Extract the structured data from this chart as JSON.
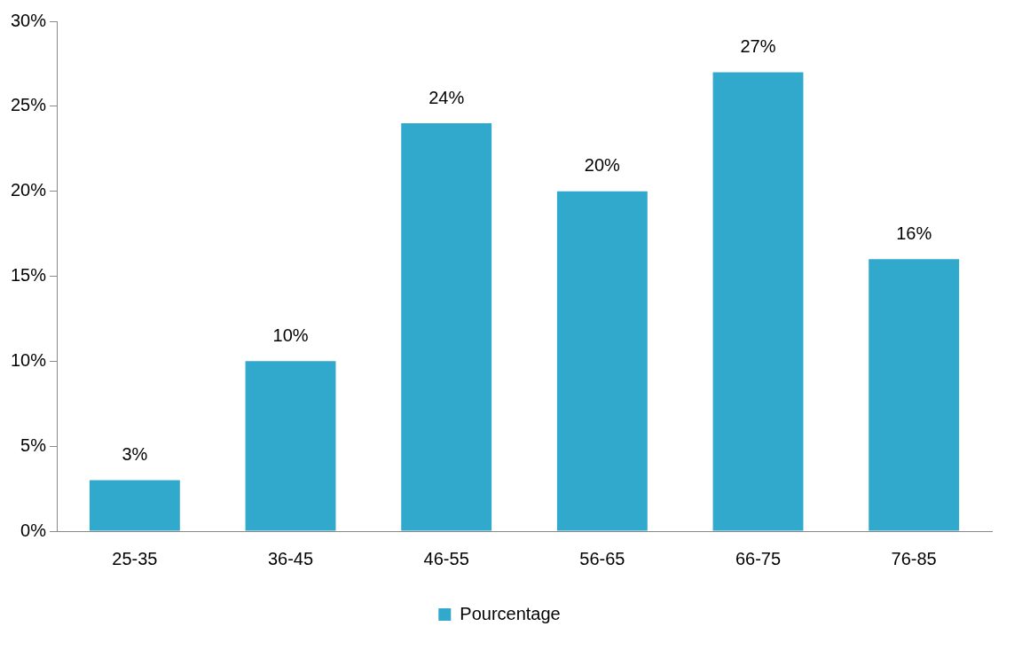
{
  "chart_data": {
    "type": "bar",
    "categories": [
      "25-35",
      "36-45",
      "46-55",
      "56-65",
      "66-75",
      "76-85"
    ],
    "series": [
      {
        "name": "Pourcentage",
        "color": "#31a9cc",
        "values": [
          3,
          10,
          24,
          20,
          27,
          16
        ],
        "value_labels": [
          "3%",
          "10%",
          "24%",
          "20%",
          "27%",
          "16%"
        ]
      }
    ],
    "ylim": [
      0,
      30
    ],
    "yticks": [
      {
        "value": 0,
        "label": "0%"
      },
      {
        "value": 5,
        "label": "5%"
      },
      {
        "value": 10,
        "label": "10%"
      },
      {
        "value": 15,
        "label": "15%"
      },
      {
        "value": 20,
        "label": "20%"
      },
      {
        "value": 25,
        "label": "25%"
      },
      {
        "value": 30,
        "label": "30%"
      }
    ],
    "grid": false,
    "legend": "bottom"
  }
}
